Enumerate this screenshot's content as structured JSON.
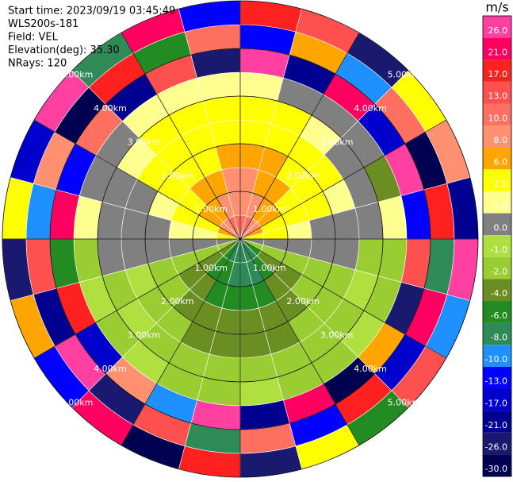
{
  "chart_data": {
    "type": "ppi",
    "annotations": [
      "Start time: 2023/09/19 03:45:49",
      "WLS200s-181",
      "Field: VEL",
      "Elevation(deg): 35.30",
      "NRays: 120"
    ],
    "rlim": [
      0,
      5
    ],
    "rings": [
      {
        "value": 1,
        "label": "1.00km"
      },
      {
        "value": 2,
        "label": "2.00km"
      },
      {
        "value": 3,
        "label": "3.00km"
      },
      {
        "value": 4,
        "label": "4.00km"
      },
      {
        "value": 5,
        "label": "5.00km"
      }
    ],
    "values": [
      [
        10,
        8,
        8,
        6,
        2,
        2,
        1,
        26,
        -13,
        17
      ],
      [
        10,
        8,
        6,
        6,
        2,
        2,
        0,
        -21,
        6,
        13
      ],
      [
        8,
        6,
        6,
        2,
        2,
        1,
        0,
        21,
        -10,
        -26
      ],
      [
        8,
        6,
        2,
        2,
        2,
        0,
        0,
        -17,
        10,
        2
      ],
      [
        6,
        2,
        2,
        2,
        1,
        0,
        -4,
        26,
        -30,
        8
      ],
      [
        2,
        2,
        1,
        0,
        0,
        0,
        1,
        -13,
        17,
        -21
      ],
      [
        0,
        0,
        0,
        0,
        0,
        -2,
        -2,
        13,
        -8,
        26
      ],
      [
        -2,
        -2,
        -2,
        -2,
        -2,
        -1,
        -2,
        -26,
        21,
        -10
      ],
      [
        -6,
        -4,
        -4,
        -2,
        -2,
        -2,
        -1,
        6,
        -17,
        13
      ],
      [
        -8,
        -6,
        -4,
        -4,
        -2,
        -2,
        -2,
        -30,
        17,
        -6
      ],
      [
        -8,
        -8,
        -6,
        -4,
        -4,
        -2,
        -2,
        21,
        -13,
        2
      ],
      [
        -8,
        -8,
        -6,
        -4,
        -4,
        -2,
        -1,
        -21,
        10,
        -26
      ],
      [
        -8,
        -8,
        -6,
        -4,
        -4,
        -2,
        -2,
        26,
        -8,
        17
      ],
      [
        -8,
        -6,
        -6,
        -4,
        -4,
        -2,
        -2,
        -10,
        13,
        -30
      ],
      [
        -6,
        -6,
        -4,
        -4,
        -2,
        -2,
        -1,
        8,
        -26,
        21
      ],
      [
        -4,
        -4,
        -4,
        -2,
        -2,
        -1,
        -2,
        -17,
        26,
        -13
      ],
      [
        -2,
        -2,
        -2,
        -2,
        -1,
        -2,
        -1,
        17,
        -21,
        6
      ],
      [
        0,
        0,
        0,
        0,
        0,
        0,
        -2,
        -6,
        13,
        -26
      ],
      [
        2,
        1,
        1,
        0,
        0,
        0,
        1,
        21,
        -10,
        2
      ],
      [
        6,
        2,
        2,
        1,
        0,
        0,
        0,
        -13,
        8,
        -17
      ],
      [
        8,
        6,
        2,
        2,
        2,
        1,
        0,
        10,
        -30,
        26
      ],
      [
        8,
        6,
        6,
        2,
        2,
        2,
        1,
        -21,
        17,
        -8
      ],
      [
        10,
        8,
        6,
        2,
        2,
        2,
        1,
        13,
        -6,
        21
      ],
      [
        10,
        8,
        8,
        6,
        2,
        2,
        1,
        -26,
        10,
        -13
      ]
    ],
    "colorbar": {
      "label": "m/s",
      "ticks": [
        {
          "value": 26,
          "label": "26.0"
        },
        {
          "value": 21,
          "label": "21.0"
        },
        {
          "value": 17,
          "label": "17.0"
        },
        {
          "value": 13,
          "label": "13.0"
        },
        {
          "value": 10,
          "label": "10.0"
        },
        {
          "value": 8,
          "label": "8.0"
        },
        {
          "value": 6,
          "label": "6.0"
        },
        {
          "value": 2,
          "label": "2.0"
        },
        {
          "value": 1,
          "label": "1.0"
        },
        {
          "value": 0,
          "label": "0.0"
        },
        {
          "value": -1,
          "label": "-1.0"
        },
        {
          "value": -2,
          "label": "-2.0"
        },
        {
          "value": -4,
          "label": "-4.0"
        },
        {
          "value": -6,
          "label": "-6.0"
        },
        {
          "value": -8,
          "label": "-8.0"
        },
        {
          "value": -10,
          "label": "-10.0"
        },
        {
          "value": -13,
          "label": "-13.0"
        },
        {
          "value": -17,
          "label": "-17.0"
        },
        {
          "value": -21,
          "label": "-21.0"
        },
        {
          "value": -26,
          "label": "-26.0"
        },
        {
          "value": -30,
          "label": "-30.0"
        }
      ],
      "colors": [
        "#ff40a0",
        "#ff0060",
        "#ff2020",
        "#ff5050",
        "#ff7060",
        "#ff9070",
        "#ffa500",
        "#ffff00",
        "#ffff90",
        "#808080",
        "#b0e040",
        "#9acd32",
        "#6b8e23",
        "#228b22",
        "#2e8b57",
        "#1e90ff",
        "#0000ff",
        "#0000cd",
        "#000090",
        "#191970",
        "#000050"
      ]
    }
  }
}
